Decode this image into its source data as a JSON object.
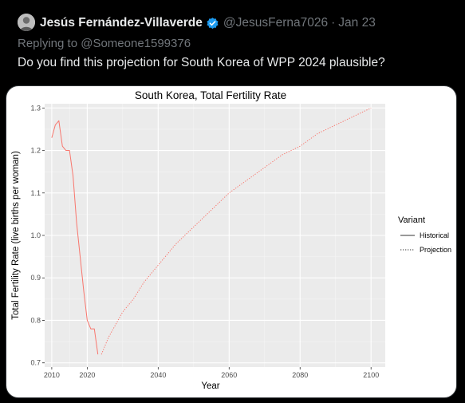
{
  "tweet": {
    "author_name": "Jesús Fernández-Villaverde",
    "handle": "@JesusFerna7026",
    "separator": "·",
    "date": "Jan 23",
    "replying_prefix": "Replying to ",
    "replying_to": "@Someone1599376",
    "text": "Do you find this projection for South Korea of WPP 2024 plausible?"
  },
  "colors": {
    "background": "#000000",
    "primary_text": "#e7e9ea",
    "secondary_text": "#71767b",
    "verified_badge": "#1d9bf0",
    "chart_line": "#f8766d",
    "panel_bg": "#ebebeb"
  },
  "icons": {
    "verified": "verified-badge-icon"
  },
  "chart_data": {
    "type": "line",
    "title": "South Korea, Total Fertility Rate",
    "xlabel": "Year",
    "ylabel": "Total Fertility Rate (live births per woman)",
    "xlim": [
      2008,
      2104
    ],
    "ylim": [
      0.69,
      1.31
    ],
    "x_ticks": [
      2010,
      2020,
      2040,
      2060,
      2080,
      2100
    ],
    "y_ticks": [
      0.7,
      0.8,
      0.9,
      1.0,
      1.1,
      1.2,
      1.3
    ],
    "x_tick_labels": [
      "2010",
      "2020",
      "2040",
      "2060",
      "2080",
      "2100"
    ],
    "y_tick_labels": [
      "0.7",
      "0.8",
      "0.9",
      "1.0",
      "1.1",
      "1.2",
      "1.3"
    ],
    "grid": true,
    "legend_title": "Variant",
    "legend_position": "right",
    "series": [
      {
        "name": "Historical",
        "line": "solid",
        "x": [
          2010,
          2011,
          2012,
          2013,
          2014,
          2015,
          2016,
          2017,
          2018,
          2019,
          2020,
          2021,
          2022,
          2023
        ],
        "y": [
          1.23,
          1.26,
          1.27,
          1.21,
          1.2,
          1.2,
          1.14,
          1.03,
          0.95,
          0.87,
          0.8,
          0.78,
          0.78,
          0.72
        ]
      },
      {
        "name": "Projection",
        "line": "dotted",
        "x": [
          2024,
          2026,
          2028,
          2030,
          2033,
          2036,
          2040,
          2045,
          2050,
          2055,
          2060,
          2065,
          2070,
          2075,
          2080,
          2085,
          2090,
          2095,
          2100
        ],
        "y": [
          0.72,
          0.76,
          0.79,
          0.82,
          0.85,
          0.89,
          0.93,
          0.98,
          1.02,
          1.06,
          1.1,
          1.13,
          1.16,
          1.19,
          1.21,
          1.24,
          1.26,
          1.28,
          1.3
        ]
      }
    ]
  }
}
